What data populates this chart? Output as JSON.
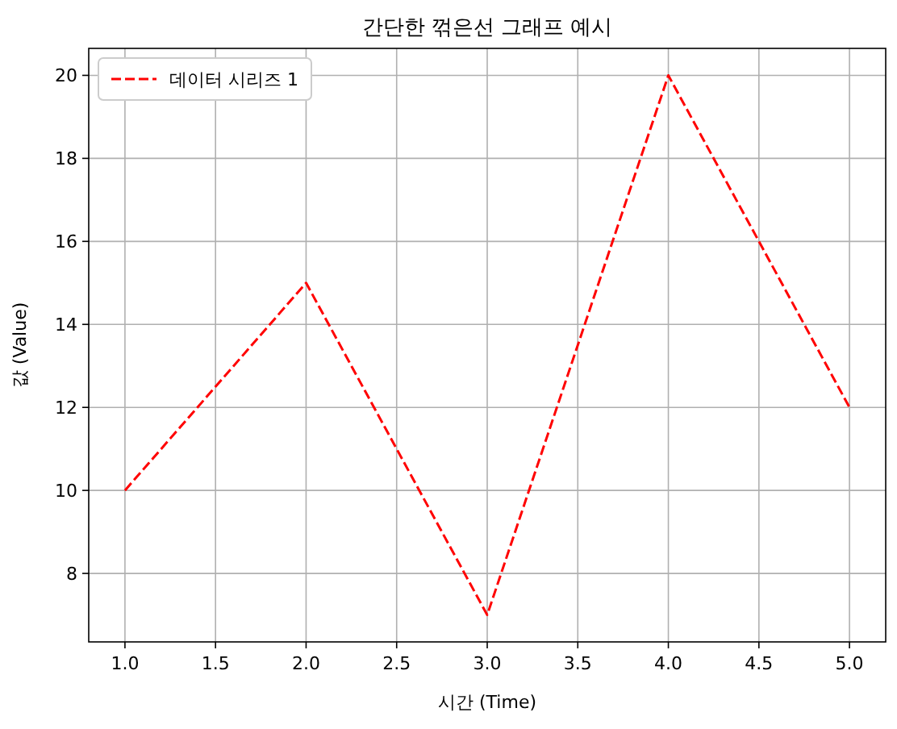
{
  "chart_data": {
    "type": "line",
    "title": "간단한 꺾은선 그래프 예시",
    "xlabel": "시간 (Time)",
    "ylabel": "값 (Value)",
    "x": [
      1,
      2,
      3,
      4,
      5
    ],
    "series": [
      {
        "name": "데이터 시리즈 1",
        "color": "#ff0000",
        "values": [
          10,
          15,
          7,
          20,
          12
        ]
      }
    ],
    "xlim": [
      0.8,
      5.2
    ],
    "ylim": [
      6.35,
      20.65
    ],
    "xticks": [
      {
        "value": 1,
        "label": "1.0"
      },
      {
        "value": 1.5,
        "label": "1.5"
      },
      {
        "value": 2,
        "label": "2.0"
      },
      {
        "value": 2.5,
        "label": "2.5"
      },
      {
        "value": 3,
        "label": "3.0"
      },
      {
        "value": 3.5,
        "label": "3.5"
      },
      {
        "value": 4,
        "label": "4.0"
      },
      {
        "value": 4.5,
        "label": "4.5"
      },
      {
        "value": 5,
        "label": "5.0"
      }
    ],
    "yticks": [
      8,
      10,
      12,
      14,
      16,
      18,
      20
    ],
    "grid": true,
    "legend": "top left",
    "line_style": "dashed",
    "marker": "none"
  }
}
